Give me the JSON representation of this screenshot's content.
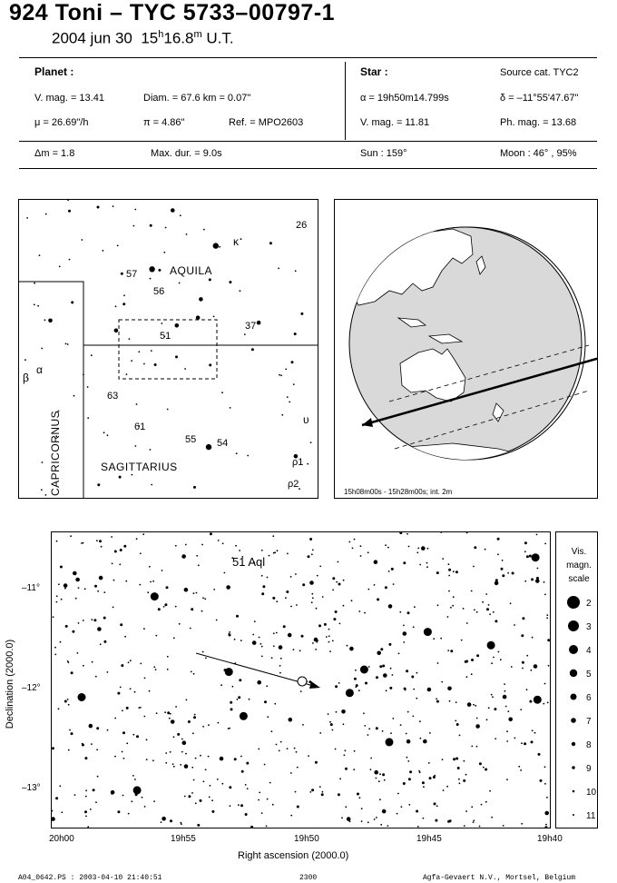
{
  "header": {
    "title": "924 Toni  –  TYC 5733–00797-1",
    "date": "2004 jun 30",
    "time_h": "15",
    "time_m": "16.8",
    "time_suffix": "U.T.",
    "sup_h": "h",
    "sup_m": "m"
  },
  "planet": {
    "heading": "Planet :",
    "vmag": "V. mag. = 13.41",
    "diam": "Diam. = 67.6 km = 0.07\"",
    "mu": "μ =  26.69\"/h",
    "pi": "π =  4.86\"",
    "ref": "Ref. = MPO2603",
    "dm": "Δm = 1.8",
    "maxdur": "Max. dur. = 9.0s"
  },
  "star": {
    "heading": "Star :",
    "source": "Source cat.  TYC2",
    "alpha": "α = 19h50m14.799s",
    "delta": "δ = –11°55'47.67\"",
    "vmag": "V. mag. = 11.81",
    "phmag": "Ph. mag. = 13.68",
    "sun": "Sun : 159°",
    "moon": "Moon :  46° , 95%"
  },
  "finder_chart": {
    "constellations": [
      "AQUILA",
      "SAGITTARIUS",
      "CAPRICORNUS"
    ],
    "star_labels": [
      "26",
      "κ",
      "57",
      "56",
      "37",
      "51",
      "β",
      "α",
      "63",
      "61",
      "55",
      "54",
      "υ",
      "ρ1",
      "ρ2"
    ]
  },
  "globe": {
    "caption": "15h08m00s - 15h28m00s; int.  2m"
  },
  "detail_chart": {
    "target_label": "51 Aql",
    "y_ticks": [
      "–11°",
      "–12°",
      "–13°"
    ],
    "x_ticks": [
      "20h00",
      "19h55",
      "19h50",
      "19h45",
      "19h40"
    ],
    "xlabel": "Right ascension (2000.0)",
    "ylabel": "Declination (2000.0)",
    "magnitude_scale": {
      "title_lines": [
        "Vis.",
        "magn.",
        "scale"
      ],
      "magnitudes": [
        "2",
        "3",
        "4",
        "5",
        "6",
        "7",
        "8",
        "9",
        "10",
        "11"
      ]
    }
  },
  "footer": {
    "left": "A04_0642.PS : 2003-04-10 21:40:51",
    "middle": "2300",
    "right": "Agfa-Gevaert N.V., Mortsel, Belgium"
  }
}
